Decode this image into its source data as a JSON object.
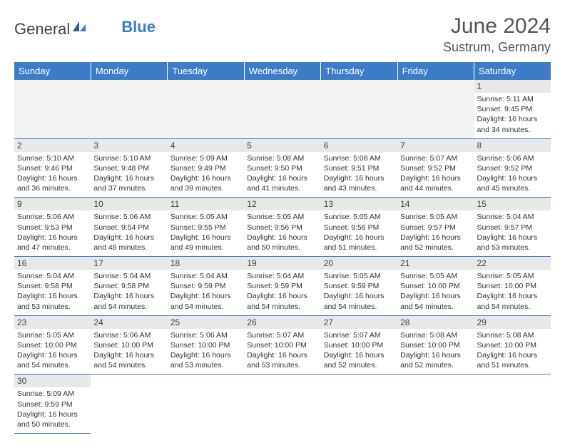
{
  "logo": {
    "word1": "General",
    "word2": "Blue"
  },
  "title": "June 2024",
  "location": "Sustrum, Germany",
  "headers": [
    "Sunday",
    "Monday",
    "Tuesday",
    "Wednesday",
    "Thursday",
    "Friday",
    "Saturday"
  ],
  "colors": {
    "header_bg": "#3d7cc9",
    "header_text": "#ffffff",
    "daynum_bg": "#e8e8e8",
    "text": "#333333",
    "border": "#3d7cc9"
  },
  "weeks": [
    [
      null,
      null,
      null,
      null,
      null,
      null,
      {
        "n": "1",
        "sr": "Sunrise: 5:11 AM",
        "ss": "Sunset: 9:45 PM",
        "d1": "Daylight: 16 hours",
        "d2": "and 34 minutes."
      }
    ],
    [
      {
        "n": "2",
        "sr": "Sunrise: 5:10 AM",
        "ss": "Sunset: 9:46 PM",
        "d1": "Daylight: 16 hours",
        "d2": "and 36 minutes."
      },
      {
        "n": "3",
        "sr": "Sunrise: 5:10 AM",
        "ss": "Sunset: 9:48 PM",
        "d1": "Daylight: 16 hours",
        "d2": "and 37 minutes."
      },
      {
        "n": "4",
        "sr": "Sunrise: 5:09 AM",
        "ss": "Sunset: 9:49 PM",
        "d1": "Daylight: 16 hours",
        "d2": "and 39 minutes."
      },
      {
        "n": "5",
        "sr": "Sunrise: 5:08 AM",
        "ss": "Sunset: 9:50 PM",
        "d1": "Daylight: 16 hours",
        "d2": "and 41 minutes."
      },
      {
        "n": "6",
        "sr": "Sunrise: 5:08 AM",
        "ss": "Sunset: 9:51 PM",
        "d1": "Daylight: 16 hours",
        "d2": "and 43 minutes."
      },
      {
        "n": "7",
        "sr": "Sunrise: 5:07 AM",
        "ss": "Sunset: 9:52 PM",
        "d1": "Daylight: 16 hours",
        "d2": "and 44 minutes."
      },
      {
        "n": "8",
        "sr": "Sunrise: 5:06 AM",
        "ss": "Sunset: 9:52 PM",
        "d1": "Daylight: 16 hours",
        "d2": "and 45 minutes."
      }
    ],
    [
      {
        "n": "9",
        "sr": "Sunrise: 5:06 AM",
        "ss": "Sunset: 9:53 PM",
        "d1": "Daylight: 16 hours",
        "d2": "and 47 minutes."
      },
      {
        "n": "10",
        "sr": "Sunrise: 5:06 AM",
        "ss": "Sunset: 9:54 PM",
        "d1": "Daylight: 16 hours",
        "d2": "and 48 minutes."
      },
      {
        "n": "11",
        "sr": "Sunrise: 5:05 AM",
        "ss": "Sunset: 9:55 PM",
        "d1": "Daylight: 16 hours",
        "d2": "and 49 minutes."
      },
      {
        "n": "12",
        "sr": "Sunrise: 5:05 AM",
        "ss": "Sunset: 9:56 PM",
        "d1": "Daylight: 16 hours",
        "d2": "and 50 minutes."
      },
      {
        "n": "13",
        "sr": "Sunrise: 5:05 AM",
        "ss": "Sunset: 9:56 PM",
        "d1": "Daylight: 16 hours",
        "d2": "and 51 minutes."
      },
      {
        "n": "14",
        "sr": "Sunrise: 5:05 AM",
        "ss": "Sunset: 9:57 PM",
        "d1": "Daylight: 16 hours",
        "d2": "and 52 minutes."
      },
      {
        "n": "15",
        "sr": "Sunrise: 5:04 AM",
        "ss": "Sunset: 9:57 PM",
        "d1": "Daylight: 16 hours",
        "d2": "and 53 minutes."
      }
    ],
    [
      {
        "n": "16",
        "sr": "Sunrise: 5:04 AM",
        "ss": "Sunset: 9:58 PM",
        "d1": "Daylight: 16 hours",
        "d2": "and 53 minutes."
      },
      {
        "n": "17",
        "sr": "Sunrise: 5:04 AM",
        "ss": "Sunset: 9:58 PM",
        "d1": "Daylight: 16 hours",
        "d2": "and 54 minutes."
      },
      {
        "n": "18",
        "sr": "Sunrise: 5:04 AM",
        "ss": "Sunset: 9:59 PM",
        "d1": "Daylight: 16 hours",
        "d2": "and 54 minutes."
      },
      {
        "n": "19",
        "sr": "Sunrise: 5:04 AM",
        "ss": "Sunset: 9:59 PM",
        "d1": "Daylight: 16 hours",
        "d2": "and 54 minutes."
      },
      {
        "n": "20",
        "sr": "Sunrise: 5:05 AM",
        "ss": "Sunset: 9:59 PM",
        "d1": "Daylight: 16 hours",
        "d2": "and 54 minutes."
      },
      {
        "n": "21",
        "sr": "Sunrise: 5:05 AM",
        "ss": "Sunset: 10:00 PM",
        "d1": "Daylight: 16 hours",
        "d2": "and 54 minutes."
      },
      {
        "n": "22",
        "sr": "Sunrise: 5:05 AM",
        "ss": "Sunset: 10:00 PM",
        "d1": "Daylight: 16 hours",
        "d2": "and 54 minutes."
      }
    ],
    [
      {
        "n": "23",
        "sr": "Sunrise: 5:05 AM",
        "ss": "Sunset: 10:00 PM",
        "d1": "Daylight: 16 hours",
        "d2": "and 54 minutes."
      },
      {
        "n": "24",
        "sr": "Sunrise: 5:06 AM",
        "ss": "Sunset: 10:00 PM",
        "d1": "Daylight: 16 hours",
        "d2": "and 54 minutes."
      },
      {
        "n": "25",
        "sr": "Sunrise: 5:06 AM",
        "ss": "Sunset: 10:00 PM",
        "d1": "Daylight: 16 hours",
        "d2": "and 53 minutes."
      },
      {
        "n": "26",
        "sr": "Sunrise: 5:07 AM",
        "ss": "Sunset: 10:00 PM",
        "d1": "Daylight: 16 hours",
        "d2": "and 53 minutes."
      },
      {
        "n": "27",
        "sr": "Sunrise: 5:07 AM",
        "ss": "Sunset: 10:00 PM",
        "d1": "Daylight: 16 hours",
        "d2": "and 52 minutes."
      },
      {
        "n": "28",
        "sr": "Sunrise: 5:08 AM",
        "ss": "Sunset: 10:00 PM",
        "d1": "Daylight: 16 hours",
        "d2": "and 52 minutes."
      },
      {
        "n": "29",
        "sr": "Sunrise: 5:08 AM",
        "ss": "Sunset: 10:00 PM",
        "d1": "Daylight: 16 hours",
        "d2": "and 51 minutes."
      }
    ],
    [
      {
        "n": "30",
        "sr": "Sunrise: 5:09 AM",
        "ss": "Sunset: 9:59 PM",
        "d1": "Daylight: 16 hours",
        "d2": "and 50 minutes."
      },
      null,
      null,
      null,
      null,
      null,
      null
    ]
  ]
}
